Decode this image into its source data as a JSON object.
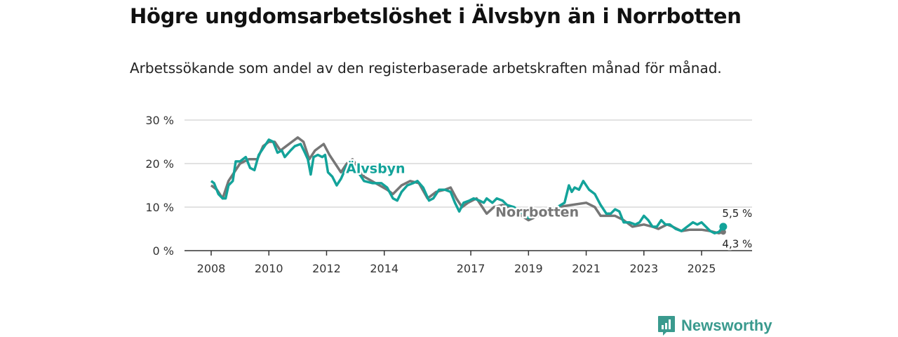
{
  "title": "Högre ungdomsarbetslöshet i Älvsbyn än i Norrbotten",
  "subtitle": "Arbetssökande som andel av den registerbaserade arbetskraften månad för månad.",
  "brand": "Newsworthy",
  "chart_data": {
    "type": "line",
    "ylim": [
      0,
      30
    ],
    "xlim": [
      2007.1,
      2026.6
    ],
    "y_ticks": [
      {
        "v": 0,
        "label": "0 %"
      },
      {
        "v": 10,
        "label": "10 %"
      },
      {
        "v": 20,
        "label": "20 %"
      },
      {
        "v": 30,
        "label": "30 %"
      }
    ],
    "x_ticks": [
      {
        "v": 2008,
        "label": "2008"
      },
      {
        "v": 2010,
        "label": "2010"
      },
      {
        "v": 2012,
        "label": "2012"
      },
      {
        "v": 2014,
        "label": "2014"
      },
      {
        "v": 2017,
        "label": "2017"
      },
      {
        "v": 2019,
        "label": "2019"
      },
      {
        "v": 2021,
        "label": "2021"
      },
      {
        "v": 2023,
        "label": "2023"
      },
      {
        "v": 2025,
        "label": "2025"
      }
    ],
    "grid": true,
    "series": [
      {
        "name": "Norrbotten",
        "color": "#767676",
        "label_at": [
          2019.3,
          7.8
        ],
        "points": [
          [
            2008.0,
            15
          ],
          [
            2008.2,
            14
          ],
          [
            2008.4,
            12
          ],
          [
            2008.6,
            16
          ],
          [
            2008.8,
            18
          ],
          [
            2009.0,
            20
          ],
          [
            2009.3,
            21
          ],
          [
            2009.6,
            21
          ],
          [
            2009.8,
            24
          ],
          [
            2010.0,
            25
          ],
          [
            2010.2,
            25
          ],
          [
            2010.4,
            23
          ],
          [
            2010.6,
            24
          ],
          [
            2010.8,
            25
          ],
          [
            2011.0,
            26
          ],
          [
            2011.2,
            25
          ],
          [
            2011.4,
            21
          ],
          [
            2011.6,
            23
          ],
          [
            2011.9,
            24.5
          ],
          [
            2012.1,
            22
          ],
          [
            2012.3,
            20
          ],
          [
            2012.5,
            18
          ],
          [
            2012.7,
            20
          ],
          [
            2012.9,
            21
          ],
          [
            2013.3,
            17
          ],
          [
            2013.7,
            15.5
          ],
          [
            2014.1,
            14
          ],
          [
            2014.3,
            13
          ],
          [
            2014.6,
            15
          ],
          [
            2014.9,
            16
          ],
          [
            2015.2,
            15.5
          ],
          [
            2015.5,
            12
          ],
          [
            2015.8,
            13.5
          ],
          [
            2016.1,
            14
          ],
          [
            2016.3,
            14.5
          ],
          [
            2016.5,
            12
          ],
          [
            2016.7,
            10
          ],
          [
            2016.9,
            11
          ],
          [
            2017.2,
            12
          ],
          [
            2017.4,
            10
          ],
          [
            2017.55,
            8.5
          ],
          [
            2017.8,
            10
          ],
          [
            2018.1,
            10.5
          ],
          [
            2018.3,
            10
          ],
          [
            2019.0,
            7
          ],
          [
            2019.5,
            8.5
          ],
          [
            2020.0,
            10
          ],
          [
            2020.5,
            10.5
          ],
          [
            2021.0,
            11
          ],
          [
            2021.3,
            10
          ],
          [
            2021.5,
            8
          ],
          [
            2021.8,
            8
          ],
          [
            2022.0,
            8
          ],
          [
            2022.3,
            7
          ],
          [
            2022.6,
            5.5
          ],
          [
            2023.0,
            6
          ],
          [
            2023.3,
            5.5
          ],
          [
            2023.5,
            5
          ],
          [
            2023.8,
            6
          ],
          [
            2024.0,
            5.5
          ],
          [
            2024.3,
            4.5
          ],
          [
            2024.6,
            4.8
          ],
          [
            2025.0,
            4.8
          ],
          [
            2025.3,
            4.5
          ],
          [
            2025.6,
            4
          ],
          [
            2025.75,
            4.3
          ]
        ],
        "end_label": "4,3 %"
      },
      {
        "name": "Älvsbyn",
        "color": "#13a39a",
        "label_at": [
          2013.7,
          17.8
        ],
        "points": [
          [
            2008.0,
            16
          ],
          [
            2008.1,
            15.5
          ],
          [
            2008.25,
            13
          ],
          [
            2008.4,
            12
          ],
          [
            2008.5,
            12
          ],
          [
            2008.6,
            15
          ],
          [
            2008.75,
            16
          ],
          [
            2008.85,
            20.5
          ],
          [
            2009.0,
            20.5
          ],
          [
            2009.2,
            21.5
          ],
          [
            2009.35,
            19
          ],
          [
            2009.5,
            18.5
          ],
          [
            2009.65,
            22
          ],
          [
            2009.85,
            24
          ],
          [
            2010.0,
            25.5
          ],
          [
            2010.15,
            25
          ],
          [
            2010.3,
            22.5
          ],
          [
            2010.45,
            23
          ],
          [
            2010.55,
            21.5
          ],
          [
            2010.75,
            23
          ],
          [
            2010.9,
            24
          ],
          [
            2011.1,
            24.5
          ],
          [
            2011.25,
            22.5
          ],
          [
            2011.35,
            21
          ],
          [
            2011.45,
            17.5
          ],
          [
            2011.55,
            21.5
          ],
          [
            2011.7,
            22
          ],
          [
            2011.85,
            21.5
          ],
          [
            2011.95,
            22
          ],
          [
            2012.05,
            18
          ],
          [
            2012.2,
            17
          ],
          [
            2012.35,
            15
          ],
          [
            2012.5,
            16.5
          ],
          [
            2012.7,
            19.5
          ],
          [
            2012.85,
            20
          ],
          [
            2013.0,
            19
          ],
          [
            2013.3,
            16
          ],
          [
            2013.6,
            15.5
          ],
          [
            2013.9,
            15.5
          ],
          [
            2014.1,
            14.5
          ],
          [
            2014.3,
            12
          ],
          [
            2014.45,
            11.5
          ],
          [
            2014.6,
            13.5
          ],
          [
            2014.8,
            15
          ],
          [
            2015.0,
            15.5
          ],
          [
            2015.15,
            16
          ],
          [
            2015.35,
            14.5
          ],
          [
            2015.55,
            11.5
          ],
          [
            2015.7,
            12
          ],
          [
            2015.9,
            14
          ],
          [
            2016.1,
            14
          ],
          [
            2016.3,
            13.5
          ],
          [
            2016.45,
            11
          ],
          [
            2016.6,
            9
          ],
          [
            2016.75,
            11
          ],
          [
            2016.95,
            11.5
          ],
          [
            2017.1,
            12
          ],
          [
            2017.3,
            11.5
          ],
          [
            2017.45,
            11
          ],
          [
            2017.55,
            12
          ],
          [
            2017.75,
            11
          ],
          [
            2017.9,
            12
          ],
          [
            2018.1,
            11.5
          ],
          [
            2018.25,
            10.5
          ],
          [
            2018.5,
            10
          ],
          [
            2019.0,
            7.5
          ],
          [
            2019.5,
            8.5
          ],
          [
            2020.0,
            10
          ],
          [
            2020.25,
            11
          ],
          [
            2020.4,
            15
          ],
          [
            2020.5,
            13.5
          ],
          [
            2020.6,
            14.5
          ],
          [
            2020.75,
            14
          ],
          [
            2020.9,
            16
          ],
          [
            2021.1,
            14
          ],
          [
            2021.3,
            13
          ],
          [
            2021.5,
            10.5
          ],
          [
            2021.7,
            8.5
          ],
          [
            2021.85,
            8.5
          ],
          [
            2022.0,
            9.5
          ],
          [
            2022.15,
            9
          ],
          [
            2022.3,
            6.5
          ],
          [
            2022.5,
            6.5
          ],
          [
            2022.7,
            6
          ],
          [
            2022.85,
            6.5
          ],
          [
            2023.0,
            8
          ],
          [
            2023.15,
            7
          ],
          [
            2023.3,
            5.5
          ],
          [
            2023.45,
            5.5
          ],
          [
            2023.6,
            7
          ],
          [
            2023.75,
            6
          ],
          [
            2023.9,
            6
          ],
          [
            2024.1,
            5
          ],
          [
            2024.3,
            4.5
          ],
          [
            2024.5,
            5.5
          ],
          [
            2024.7,
            6.5
          ],
          [
            2024.85,
            6
          ],
          [
            2025.0,
            6.5
          ],
          [
            2025.15,
            5.5
          ],
          [
            2025.3,
            4.5
          ],
          [
            2025.45,
            4
          ],
          [
            2025.6,
            4.3
          ],
          [
            2025.75,
            5.5
          ]
        ],
        "end_label": "5,5 %"
      }
    ]
  }
}
